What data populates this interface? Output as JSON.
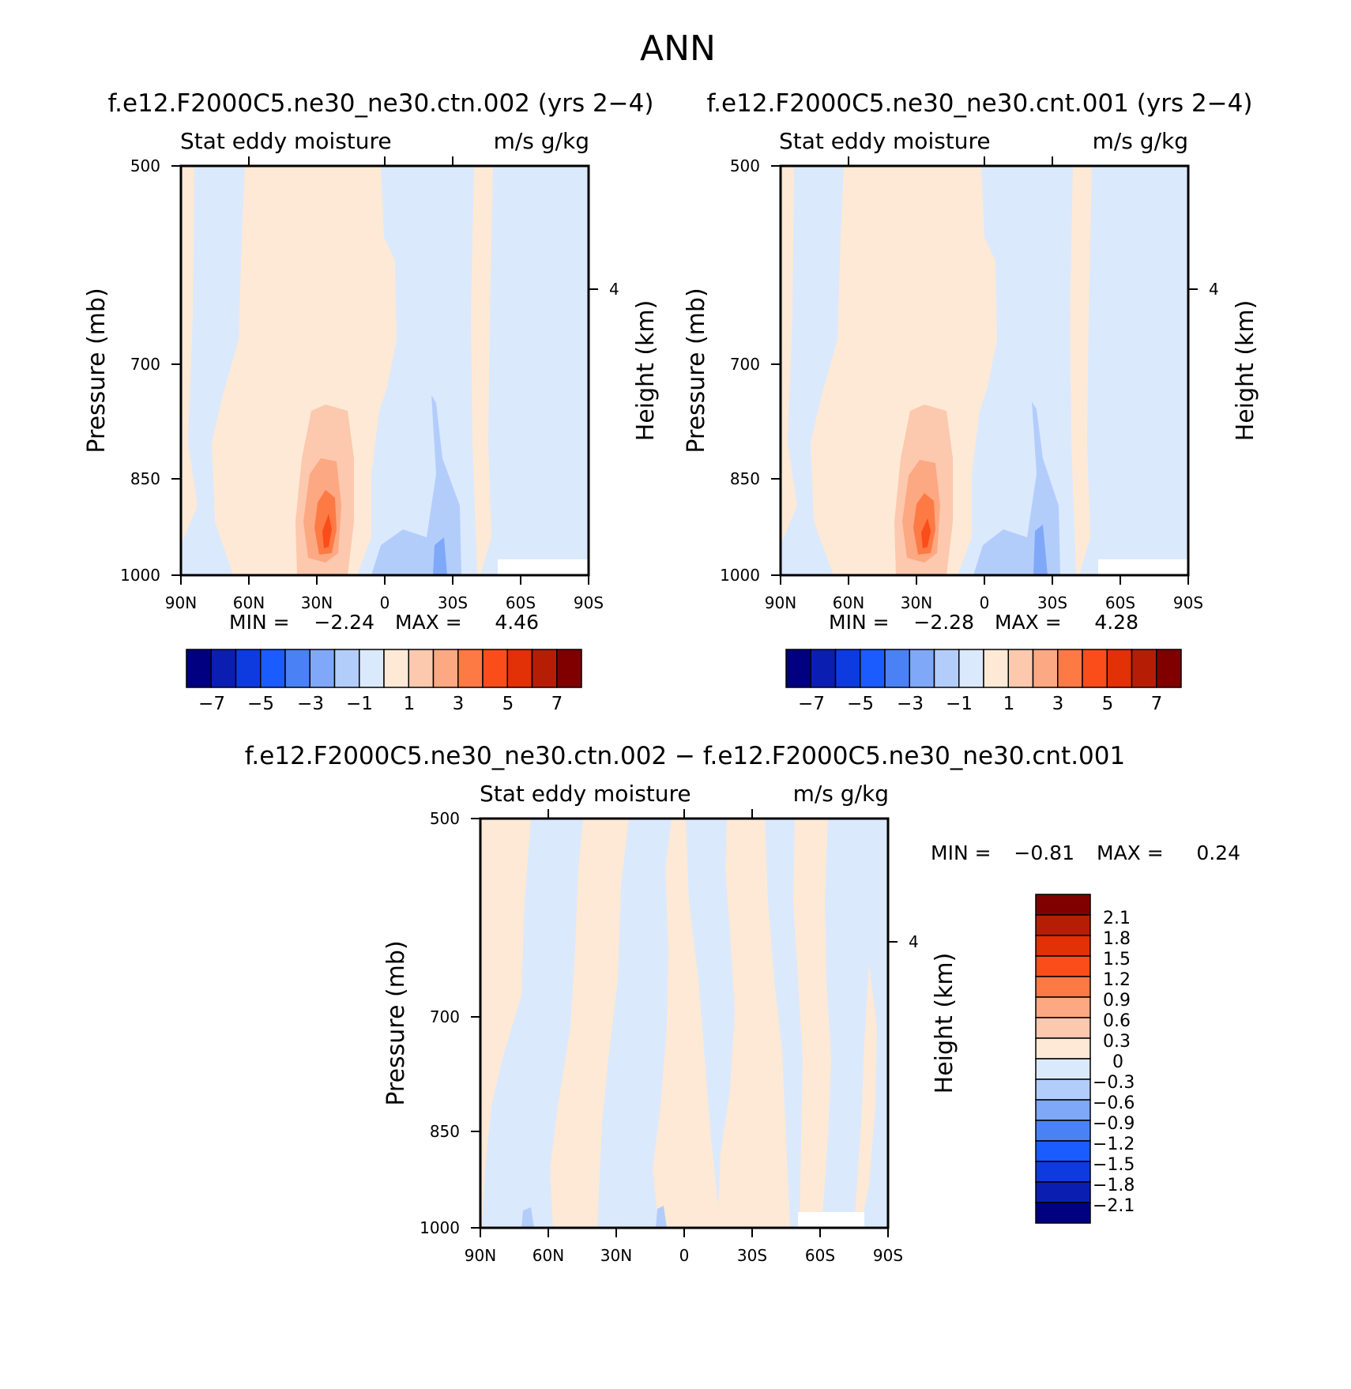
{
  "main_title": "ANN",
  "palette": {
    "cold": [
      "#000080",
      "#0a1fb2",
      "#0d3be0",
      "#1a5cff",
      "#4a82f5",
      "#7fa8f8",
      "#b3cdfb",
      "#dbe9fd"
    ],
    "warm": [
      "#fde9d6",
      "#fcc8ae",
      "#fca882",
      "#fd7a45",
      "#fa4d1a",
      "#e23007",
      "#b51e05",
      "#800000"
    ]
  },
  "chart_data": [
    {
      "type": "heatmap",
      "title": "f.e12.F2000C5.ne30_ne30.ctn.002 (yrs 2−4)",
      "variable": "Stat eddy moisture",
      "units": "m/s g/kg",
      "ylabel": "Pressure (mb)",
      "y2label": "Height (km)",
      "x_ticks": [
        "90N",
        "60N",
        "30N",
        "0",
        "30S",
        "60S",
        "90S"
      ],
      "y_ticks": [
        "500",
        "700",
        "850",
        "1000"
      ],
      "y2_ticks": [
        "4"
      ],
      "min_label": "MIN =",
      "min_value": "−2.24",
      "max_label": "MAX =",
      "max_value": "4.46",
      "colorbar_labels": [
        "−7",
        "−5",
        "−3",
        "−1",
        "1",
        "3",
        "5",
        "7"
      ]
    },
    {
      "type": "heatmap",
      "title": "f.e12.F2000C5.ne30_ne30.cnt.001 (yrs 2−4)",
      "variable": "Stat eddy moisture",
      "units": "m/s g/kg",
      "ylabel": "Pressure (mb)",
      "y2label": "Height (km)",
      "x_ticks": [
        "90N",
        "60N",
        "30N",
        "0",
        "30S",
        "60S",
        "90S"
      ],
      "y_ticks": [
        "500",
        "700",
        "850",
        "1000"
      ],
      "y2_ticks": [
        "4"
      ],
      "min_label": "MIN =",
      "min_value": "−2.28",
      "max_label": "MAX =",
      "max_value": "4.28",
      "colorbar_labels": [
        "−7",
        "−5",
        "−3",
        "−1",
        "1",
        "3",
        "5",
        "7"
      ]
    },
    {
      "type": "heatmap",
      "title": "f.e12.F2000C5.ne30_ne30.ctn.002 − f.e12.F2000C5.ne30_ne30.cnt.001",
      "variable": "Stat eddy moisture",
      "units": "m/s g/kg",
      "ylabel": "Pressure (mb)",
      "y2label": "Height (km)",
      "x_ticks": [
        "90N",
        "60N",
        "30N",
        "0",
        "30S",
        "60S",
        "90S"
      ],
      "y_ticks": [
        "500",
        "700",
        "850",
        "1000"
      ],
      "y2_ticks": [
        "4"
      ],
      "min_label": "MIN =",
      "min_value": "−0.81",
      "max_label": "MAX =",
      "max_value": "0.24",
      "colorbar_labels": [
        "2.1",
        "1.8",
        "1.5",
        "1.2",
        "0.9",
        "0.6",
        "0.3",
        "0",
        "−0.3",
        "−0.6",
        "−0.9",
        "−1.2",
        "−1.5",
        "−1.8",
        "−2.1"
      ]
    }
  ]
}
